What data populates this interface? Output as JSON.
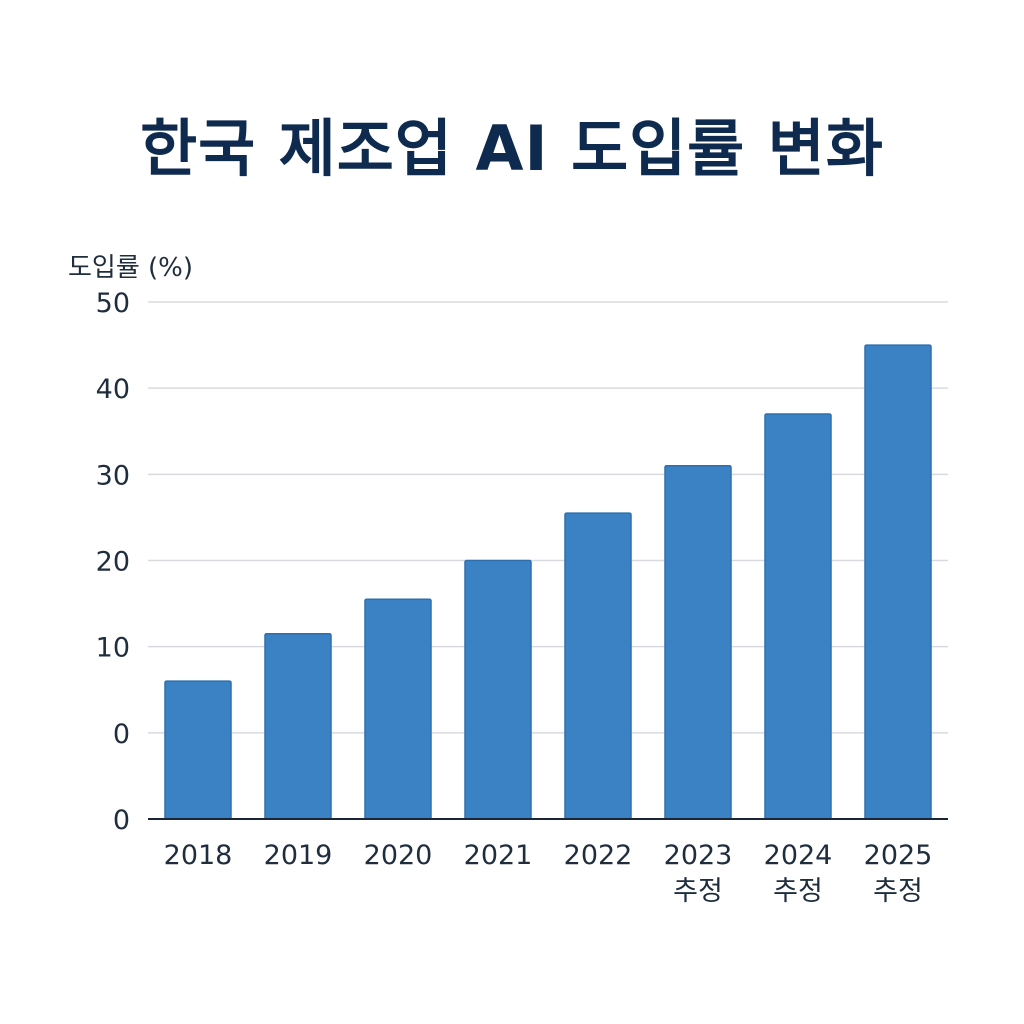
{
  "chart_data": {
    "type": "bar",
    "title": "한국 제조업 AI 도입률 변화",
    "ylabel": "도입률 (%)",
    "xlabel": "",
    "categories": [
      "2018",
      "2019",
      "2020",
      "2021",
      "2022",
      "2023\n추정",
      "2024\n추정",
      "2025\n추정"
    ],
    "values": [
      6,
      11.5,
      15.5,
      20,
      25.5,
      31,
      37,
      45
    ],
    "ytick_labels": [
      "0",
      "0",
      "10",
      "20",
      "30",
      "40",
      "50"
    ],
    "ylim": [
      -10,
      50
    ],
    "grid": true,
    "bar_color": "#3b82c4",
    "bar_edge_color": "#2f6fae",
    "title_color": "#0f2a4f"
  }
}
